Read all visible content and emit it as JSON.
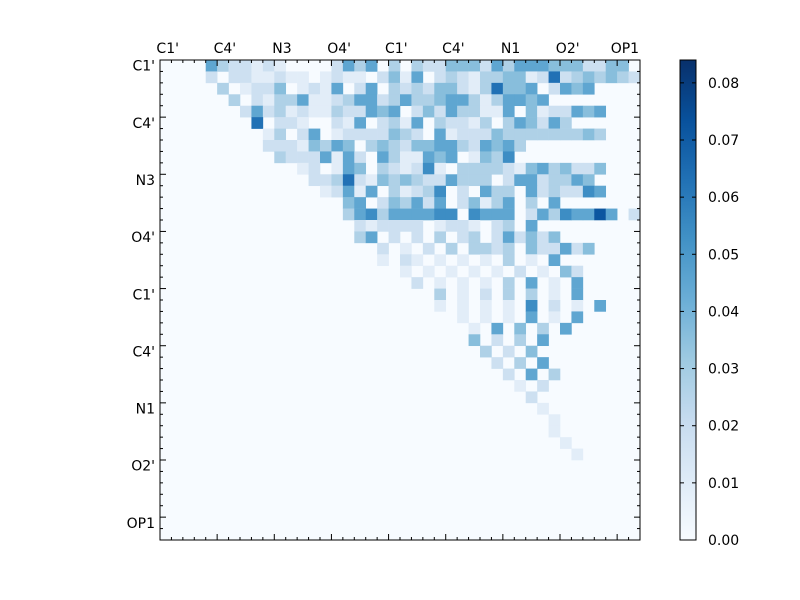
{
  "chart_data": {
    "type": "heatmap",
    "title": "",
    "n": 42,
    "x_tick_labels": [
      "C1'",
      "C4'",
      "N3",
      "O4'",
      "C1'",
      "C4'",
      "N1",
      "O2'",
      "OP1"
    ],
    "y_tick_labels": [
      "C1'",
      "C4'",
      "N3",
      "O4'",
      "C1'",
      "C4'",
      "N1",
      "O2'",
      "OP1"
    ],
    "tick_step": 5,
    "colormap": [
      "#f7fbff",
      "#deebf7",
      "#c6dbef",
      "#9ecae1",
      "#6baed6",
      "#4292c6",
      "#2171b5",
      "#08519c",
      "#08306b"
    ],
    "vmin": 0.0,
    "vmax": 0.084,
    "colorbar_ticks": [
      "0.00",
      "0.01",
      "0.02",
      "0.03",
      "0.04",
      "0.05",
      "0.06",
      "0.07",
      "0.08"
    ],
    "colorbar_values": [
      0,
      0.01,
      0.02,
      0.03,
      0.04,
      0.05,
      0.06,
      0.07,
      0.08
    ],
    "upper_triangle_only": true,
    "row_cells": [
      "...5322121....2535.3.3224442535554442244",
      "..2.2211211.1211.2415.2321334412723434325",
      "..3.1224.1215.25.3232442137445.2545",
      "..3.21335112355235334553135545",
      "..25231211322545.242533115.4122545",
      "..7.221..215.2315.32213.354253",
      "..13.25.12222432.512224333333343",
      ".22214354.34324455325453",
      ".32225152.5311545.1436",
      "..12.154.321261.3333214534224",
      "..2237214343225333.25523354",
      "..12515.31236.2.533.5232265",
      "...45.243525.24135.3.5",
      "..3563555566.6555.25365585.26",
      "..212222.1221.23.5",
      ".35.2.2.3.23.252424",
      "..2.1.2.3.3323.422524",
      ".1.21.1.1.1.3.1.5",
      "..1.1.1.1.1.2.1.42",
      "..2.1.1.1.3.5.1.5",
      "...3.1.2.3.3.1.5",
      "..1.1.1.1.6.2.1.5",
      "...1.1.1.5.1.5",
      "...1.5.4.3.5",
      "..4.2.3.5",
      "..3.2.4",
      "..2.3.5",
      "..2.5.3",
      "..1.2",
      "..2",
      "..1",
      "..1",
      ".1",
      ".1",
      ".1",
      "",
      "",
      "",
      "",
      "",
      "",
      ""
    ]
  }
}
